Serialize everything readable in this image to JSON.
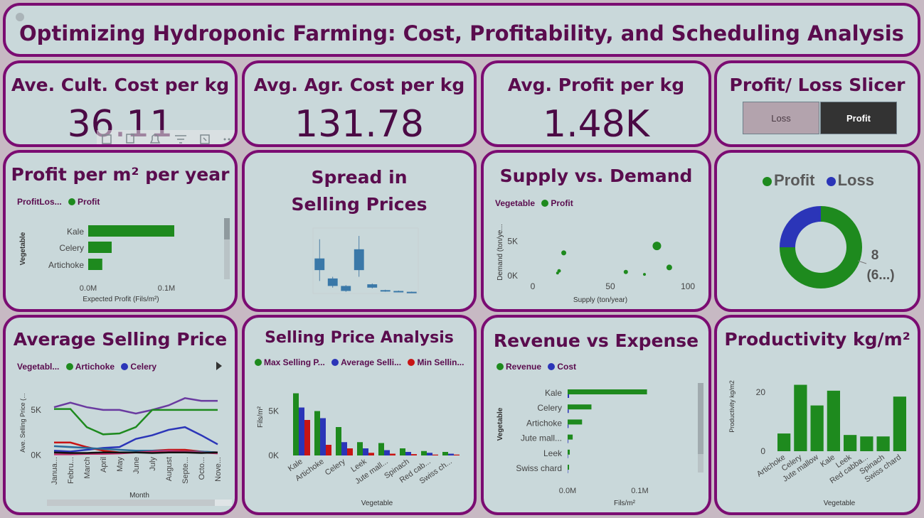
{
  "header": {
    "title": "Optimizing Hydroponic Farming: Cost, Profitability, and Scheduling Analysis"
  },
  "kpis": [
    {
      "label": "Ave. Cult. Cost per kg",
      "value": "36.11"
    },
    {
      "label": "Avg. Agr. Cost per kg",
      "value": "131.78"
    },
    {
      "label": "Avg. Profit per kg",
      "value": "1.48K"
    }
  ],
  "slicer": {
    "title": "Profit/ Loss Slicer",
    "options": [
      "Loss",
      "Profit"
    ],
    "selected": "Profit"
  },
  "colors": {
    "green": "#1e8a1e",
    "blue": "#2b35b8",
    "red": "#c81414",
    "purple": "#6a3aa0",
    "steel": "#3a78a8"
  },
  "icons": [
    "pin-icon",
    "copy-icon",
    "bell-icon",
    "filter-icon",
    "focus-mode-icon",
    "more-options-icon",
    "next-arrow-icon"
  ],
  "chart_data": [
    {
      "id": "profit_per_m2",
      "type": "bar",
      "orientation": "horizontal",
      "title": "Profit per m² per year",
      "legend_title": "ProfitLos...",
      "legend": [
        "Profit"
      ],
      "ylabel": "Vegetable",
      "xlabel": "Expected Profit (Fils/m²)",
      "categories": [
        "Kale",
        "Celery",
        "Artichoke"
      ],
      "values": [
        110000,
        30000,
        18000
      ],
      "xlim": [
        0,
        140000
      ],
      "xticks": [
        "0.0M",
        "0.1M"
      ]
    },
    {
      "id": "spread_selling_prices",
      "type": "box",
      "title": "Spread in Selling Prices",
      "boxes": [
        {
          "q1": 2800,
          "median": 3300,
          "q3": 4200,
          "min": 1500,
          "max": 6500
        },
        {
          "q1": 900,
          "median": 1300,
          "q3": 1800,
          "min": 700,
          "max": 2000
        },
        {
          "q1": 300,
          "median": 600,
          "q3": 900,
          "min": 200,
          "max": 1000
        },
        {
          "q1": 2800,
          "median": 3800,
          "q3": 5300,
          "min": 2000,
          "max": 6900
        },
        {
          "q1": 700,
          "median": 900,
          "q3": 1100,
          "min": 600,
          "max": 1200
        },
        {
          "q1": 250,
          "median": 320,
          "q3": 400,
          "min": 200,
          "max": 450
        },
        {
          "q1": 180,
          "median": 240,
          "q3": 300,
          "min": 150,
          "max": 350
        },
        {
          "q1": 100,
          "median": 150,
          "q3": 200,
          "min": 80,
          "max": 230
        }
      ],
      "ylim": [
        0,
        7500
      ]
    },
    {
      "id": "supply_demand",
      "type": "scatter",
      "title": "Supply vs. Demand",
      "legend_title": "Vegetable",
      "legend": [
        "Profit"
      ],
      "xlabel": "Supply (ton/year)",
      "ylabel": "Demand (ton/ye...",
      "xlim": [
        -5,
        105
      ],
      "ylim": [
        -500,
        8000
      ],
      "xticks": [
        0,
        50,
        100
      ],
      "yticks": [
        {
          "v": 0,
          "t": "0K"
        },
        {
          "v": 5000,
          "t": "5K"
        }
      ],
      "points": [
        {
          "x": 20,
          "y": 3300,
          "r": 3.5
        },
        {
          "x": 17,
          "y": 700,
          "r": 2.5
        },
        {
          "x": 16,
          "y": 400,
          "r": 2
        },
        {
          "x": 60,
          "y": 550,
          "r": 3
        },
        {
          "x": 72,
          "y": 200,
          "r": 2
        },
        {
          "x": 80,
          "y": 4300,
          "r": 6
        },
        {
          "x": 88,
          "y": 1200,
          "r": 4
        }
      ]
    },
    {
      "id": "profit_loss_donut",
      "type": "pie",
      "donut": true,
      "legend": [
        "Profit",
        "Loss"
      ],
      "slices": [
        {
          "name": "Profit",
          "value": 6
        },
        {
          "name": "Loss",
          "value": 2
        }
      ],
      "label_value": "8",
      "label_sub": "(6...)"
    },
    {
      "id": "avg_selling_price",
      "type": "line",
      "title": "Average Selling Price",
      "legend_title": "Vegetabl...",
      "legend": [
        "Artichoke",
        "Celery"
      ],
      "xlabel": "Month",
      "ylabel": "Ave. Selling Price (...",
      "categories": [
        "Janua...",
        "Febru...",
        "March",
        "April",
        "May",
        "June",
        "July",
        "August",
        "Septe...",
        "Octo...",
        "Nove..."
      ],
      "ylim": [
        -500,
        7500
      ],
      "yticks": [
        {
          "v": 0,
          "t": "0K"
        },
        {
          "v": 5000,
          "t": "5K"
        }
      ],
      "series": [
        {
          "color": "#6a3aa0",
          "values": [
            5300,
            5800,
            5300,
            5000,
            5000,
            4600,
            5000,
            5500,
            6300,
            6000,
            6000
          ]
        },
        {
          "color": "#1e8a1e",
          "values": [
            5100,
            5100,
            3100,
            2300,
            2400,
            3100,
            5000,
            5000,
            5000,
            5000,
            5000
          ]
        },
        {
          "color": "#2b35b8",
          "values": [
            500,
            400,
            600,
            800,
            900,
            1800,
            2200,
            2800,
            3100,
            2200,
            1200
          ]
        },
        {
          "color": "#c81414",
          "values": [
            1400,
            1400,
            900,
            500,
            300,
            300,
            500,
            600,
            600,
            400,
            300
          ]
        },
        {
          "color": "#2a6a9a",
          "values": [
            1000,
            900,
            800,
            700,
            600,
            500,
            500,
            500,
            400,
            400,
            300
          ]
        },
        {
          "color": "#c0306e",
          "values": [
            100,
            100,
            150,
            150,
            200,
            300,
            400,
            500,
            400,
            300,
            200
          ]
        },
        {
          "color": "#111111",
          "values": [
            300,
            250,
            250,
            300,
            300,
            300,
            250,
            300,
            300,
            250,
            300
          ]
        }
      ]
    },
    {
      "id": "selling_price_analysis",
      "type": "bar",
      "title": "Selling Price Analysis",
      "legend": [
        "Max Selling P...",
        "Average Selli...",
        "Min Sellin..."
      ],
      "xlabel": "Vegetable",
      "ylabel": "Fils/m²",
      "categories": [
        "Kale",
        "Artichoke",
        "Celery",
        "Leek",
        "Jute mall...",
        "Spinach",
        "Red cab...",
        "Swiss ch..."
      ],
      "series": [
        {
          "name": "Max Selling P...",
          "color": "#1e8a1e",
          "values": [
            7000,
            5000,
            3200,
            1500,
            1400,
            800,
            500,
            400
          ]
        },
        {
          "name": "Average Selli...",
          "color": "#2b35b8",
          "values": [
            5400,
            4200,
            1500,
            800,
            600,
            400,
            300,
            200
          ]
        },
        {
          "name": "Min Sellin...",
          "color": "#c81414",
          "values": [
            4000,
            1200,
            800,
            300,
            200,
            150,
            100,
            100
          ]
        }
      ],
      "ylim": [
        0,
        8000
      ],
      "yticks": [
        {
          "v": 0,
          "t": "0K"
        },
        {
          "v": 5000,
          "t": "5K"
        }
      ]
    },
    {
      "id": "revenue_expense",
      "type": "bar",
      "orientation": "horizontal",
      "title": "Revenue vs Expense",
      "legend": [
        "Revenue",
        "Cost"
      ],
      "xlabel": "Fils/m²",
      "ylabel": "Vegetable",
      "categories": [
        "Kale",
        "Celery",
        "Artichoke",
        "Jute mall...",
        "Leek",
        "Swiss chard"
      ],
      "series": [
        {
          "name": "Revenue",
          "color": "#1e8a1e",
          "values": [
            110000,
            33000,
            20000,
            7000,
            3000,
            2000
          ]
        },
        {
          "name": "Cost",
          "color": "#2b35b8",
          "values": [
            2000,
            1500,
            1200,
            800,
            600,
            500
          ]
        }
      ],
      "xlim": [
        0,
        140000
      ],
      "xticks": [
        "0.0M",
        "0.1M"
      ]
    },
    {
      "id": "productivity",
      "type": "bar",
      "title": "Productivity kg/m²",
      "xlabel": "Vegetable",
      "ylabel": "Productivity kg/m2",
      "categories": [
        "Artichoke",
        "Celery",
        "Jute mallow",
        "Kale",
        "Leek",
        "Red cabba...",
        "Spinach",
        "Swiss chard"
      ],
      "values": [
        6,
        22.5,
        15.5,
        20.5,
        5.5,
        5,
        5,
        18.5
      ],
      "ylim": [
        0,
        26
      ],
      "yticks": [
        {
          "v": 0,
          "t": "0"
        },
        {
          "v": 20,
          "t": "20"
        }
      ]
    }
  ]
}
